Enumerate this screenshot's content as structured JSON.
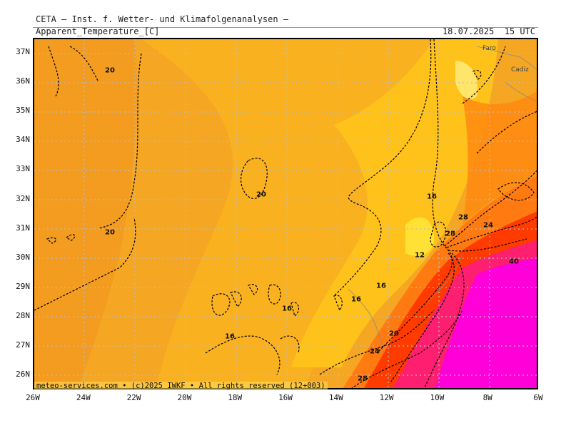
{
  "header": {
    "title": "CETA — Inst. f. Wetter- und Klimafolgenanalysen —",
    "parameter": "Apparent_Temperature_[C]",
    "datetime": "18.07.2025  15 UTC"
  },
  "axes": {
    "lat_labels": [
      "37N",
      "36N",
      "35N",
      "34N",
      "33N",
      "32N",
      "31N",
      "30N",
      "29N",
      "28N",
      "27N",
      "26N"
    ],
    "lon_labels": [
      "26W",
      "24W",
      "22W",
      "20W",
      "18W",
      "16W",
      "14W",
      "12W",
      "10W",
      "8W",
      "6W"
    ]
  },
  "credit": "meteo-services.com • (c)2025 IWKF • All rights reserved (12+003)",
  "places": {
    "faro": "Faro",
    "cadiz": "Cadiz"
  },
  "contour_labels": {
    "a": "20",
    "b": "20",
    "c": "20",
    "d": "16",
    "e": "16",
    "f": "16",
    "g": "16",
    "h": "16",
    "i": "12",
    "j": "28",
    "k": "24",
    "l": "28",
    "m": "40",
    "n": "20",
    "o": "24",
    "p": "28"
  },
  "colors": {
    "warm_ocean": "#f5a623",
    "mild": "#ffc107",
    "cool_yellow": "#ffe135",
    "hot_red": "#ff3b00",
    "very_hot": "#ff1f70",
    "extreme": "#ff00d8"
  }
}
